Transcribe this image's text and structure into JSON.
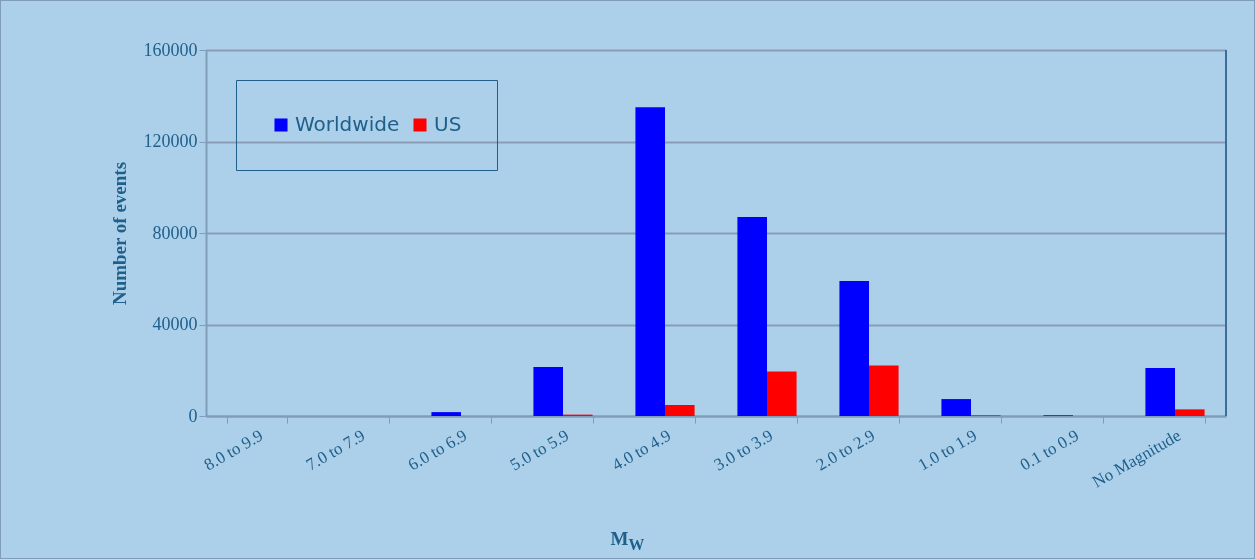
{
  "chart_data": {
    "type": "bar",
    "xlabel": "M$_{W}$",
    "ylabel": "Number of events",
    "categories": [
      "8.0 to 9.9",
      "7.0 to 7.9",
      "6.0 to 6.9",
      "5.0 to 5.9",
      "4.0 to 4.9",
      "3.0 to 3.9",
      "2.0 to 2.9",
      "1.0 to 1.9",
      "0.1 to 0.9",
      "No Magnitude"
    ],
    "series": [
      {
        "name": "Worldwide",
        "color": "#0000ff",
        "values": [
          0,
          null,
          1700,
          21400,
          135000,
          87000,
          59000,
          7400,
          300,
          21000
        ]
      },
      {
        "name": "US",
        "color": "#ff0000",
        "values": [
          0,
          0,
          0,
          600,
          4800,
          19500,
          22100,
          300,
          null,
          2900
        ]
      }
    ],
    "ylim": [
      0,
      160000
    ],
    "yticks": [
      0,
      40000,
      80000,
      120000,
      160000
    ],
    "grid": "y",
    "legend": "top left"
  }
}
